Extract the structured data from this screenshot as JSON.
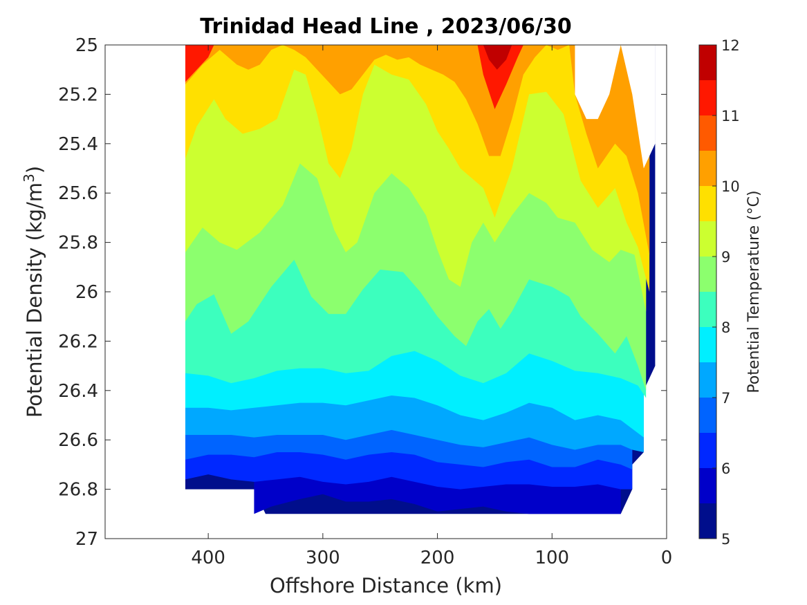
{
  "chart_data": {
    "type": "contour",
    "title": "Trinidad Head Line , 2023/06/30",
    "xlabel": "Offshore Distance (km)",
    "ylabel_main": "Potential Density (kg/m",
    "ylabel_sup": "3",
    "ylabel_end": ")",
    "x_reversed": true,
    "y_reversed": true,
    "xlim": [
      490,
      0
    ],
    "ylim": [
      25,
      27
    ],
    "xticks": [
      {
        "value": 400,
        "label": "400"
      },
      {
        "value": 300,
        "label": "300"
      },
      {
        "value": 200,
        "label": "200"
      },
      {
        "value": 100,
        "label": "100"
      },
      {
        "value": 0,
        "label": "0"
      }
    ],
    "yticks": [
      {
        "value": 25,
        "label": "25"
      },
      {
        "value": 25.2,
        "label": "25.2"
      },
      {
        "value": 25.4,
        "label": "25.4"
      },
      {
        "value": 25.6,
        "label": "25.6"
      },
      {
        "value": 25.8,
        "label": "25.8"
      },
      {
        "value": 26,
        "label": "26"
      },
      {
        "value": 26.2,
        "label": "26.2"
      },
      {
        "value": 26.4,
        "label": "26.4"
      },
      {
        "value": 26.6,
        "label": "26.6"
      },
      {
        "value": 26.8,
        "label": "26.8"
      },
      {
        "value": 27,
        "label": "27"
      }
    ],
    "colorbar": {
      "label": "Potential Temperature (°C)",
      "range": [
        5,
        12
      ],
      "ticks": [
        {
          "value": 5,
          "label": "5"
        },
        {
          "value": 6,
          "label": "6"
        },
        {
          "value": 7,
          "label": "7"
        },
        {
          "value": 8,
          "label": "8"
        },
        {
          "value": 9,
          "label": "9"
        },
        {
          "value": 10,
          "label": "10"
        },
        {
          "value": 11,
          "label": "11"
        },
        {
          "value": 12,
          "label": "12"
        }
      ],
      "levels": [
        5,
        5.5,
        6,
        6.5,
        7,
        7.5,
        8,
        8.5,
        9,
        9.5,
        10,
        10.5,
        11,
        11.5,
        12
      ],
      "colors": [
        "#000e8c",
        "#0000c9",
        "#0028ff",
        "#0064ff",
        "#00a8ff",
        "#00efff",
        "#3cffbe",
        "#8cff6e",
        "#ccff30",
        "#ffe000",
        "#ffa000",
        "#ff5a00",
        "#ff1800",
        "#c00000"
      ]
    },
    "data_extent": {
      "x_offshore_max": 420,
      "x_inshore_min": 10,
      "sigma_min": 25,
      "sigma_max": 26.9
    },
    "isotherms": [
      {
        "level": 5.5,
        "x": [
          360,
          345,
          320,
          300,
          280,
          260,
          240,
          220,
          200,
          180,
          160,
          140,
          120,
          100,
          80,
          60,
          40
        ],
        "sigma": [
          26.9,
          26.87,
          26.84,
          26.82,
          26.85,
          26.85,
          26.84,
          26.86,
          26.89,
          26.88,
          26.87,
          26.89,
          26.9,
          26.9,
          26.9,
          26.9,
          26.9
        ]
      },
      {
        "level": 6,
        "x": [
          420,
          400,
          380,
          360,
          340,
          320,
          300,
          280,
          260,
          240,
          220,
          200,
          180,
          160,
          140,
          120,
          100,
          80,
          60,
          40,
          30
        ],
        "sigma": [
          26.76,
          26.74,
          26.76,
          26.77,
          26.76,
          26.75,
          26.77,
          26.78,
          26.77,
          26.75,
          26.77,
          26.79,
          26.8,
          26.79,
          26.78,
          26.78,
          26.79,
          26.79,
          26.78,
          26.8,
          26.8
        ]
      },
      {
        "level": 6.5,
        "x": [
          420,
          400,
          380,
          360,
          340,
          320,
          300,
          280,
          260,
          240,
          220,
          200,
          180,
          160,
          140,
          120,
          100,
          80,
          60,
          40,
          30
        ],
        "sigma": [
          26.68,
          26.66,
          26.66,
          26.67,
          26.65,
          26.65,
          26.66,
          26.68,
          26.66,
          26.65,
          26.66,
          26.69,
          26.7,
          26.71,
          26.69,
          26.68,
          26.71,
          26.71,
          26.68,
          26.7,
          26.72
        ]
      },
      {
        "level": 7,
        "x": [
          420,
          400,
          380,
          360,
          340,
          320,
          300,
          280,
          260,
          240,
          220,
          200,
          180,
          160,
          140,
          120,
          100,
          80,
          60,
          40,
          30,
          20
        ],
        "sigma": [
          26.58,
          26.58,
          26.58,
          26.59,
          26.58,
          26.58,
          26.58,
          26.6,
          26.58,
          26.56,
          26.58,
          26.6,
          26.62,
          26.63,
          26.61,
          26.59,
          26.62,
          26.64,
          26.62,
          26.62,
          26.64,
          26.65
        ]
      },
      {
        "level": 7.5,
        "x": [
          420,
          400,
          380,
          360,
          340,
          320,
          300,
          280,
          260,
          240,
          220,
          200,
          180,
          160,
          140,
          120,
          100,
          80,
          60,
          40,
          20
        ],
        "sigma": [
          26.47,
          26.47,
          26.48,
          26.47,
          26.46,
          26.45,
          26.45,
          26.46,
          26.44,
          26.42,
          26.43,
          26.46,
          26.5,
          26.52,
          26.49,
          26.45,
          26.47,
          26.52,
          26.5,
          26.52,
          26.59
        ]
      },
      {
        "level": 8,
        "x": [
          420,
          400,
          380,
          360,
          340,
          320,
          300,
          280,
          260,
          240,
          220,
          200,
          180,
          160,
          140,
          120,
          100,
          80,
          60,
          40,
          25,
          18
        ],
        "sigma": [
          26.33,
          26.34,
          26.37,
          26.35,
          26.32,
          26.31,
          26.31,
          26.33,
          26.32,
          26.26,
          26.24,
          26.28,
          26.34,
          26.37,
          26.33,
          26.25,
          26.28,
          26.32,
          26.33,
          26.35,
          26.38,
          26.43
        ]
      },
      {
        "level": 8.5,
        "x": [
          420,
          410,
          395,
          380,
          365,
          345,
          325,
          310,
          295,
          280,
          265,
          250,
          230,
          215,
          200,
          185,
          175,
          165,
          155,
          145,
          135,
          120,
          100,
          85,
          75,
          60,
          45,
          35,
          25,
          18
        ],
        "sigma": [
          26.12,
          26.05,
          26.01,
          26.17,
          26.12,
          25.98,
          25.87,
          26.02,
          26.09,
          26.09,
          25.99,
          25.91,
          25.92,
          26.0,
          26.1,
          26.18,
          26.22,
          26.12,
          26.07,
          26.15,
          26.08,
          25.95,
          25.98,
          26.02,
          26.1,
          26.17,
          26.25,
          26.18,
          26.3,
          26.4
        ]
      },
      {
        "level": 9,
        "x": [
          420,
          405,
          390,
          375,
          355,
          335,
          320,
          305,
          290,
          280,
          270,
          255,
          240,
          225,
          210,
          200,
          190,
          180,
          170,
          160,
          150,
          135,
          120,
          105,
          95,
          80,
          65,
          50,
          40,
          28,
          18
        ],
        "sigma": [
          25.84,
          25.74,
          25.8,
          25.83,
          25.76,
          25.65,
          25.48,
          25.54,
          25.75,
          25.84,
          25.8,
          25.6,
          25.52,
          25.58,
          25.69,
          25.83,
          25.95,
          25.98,
          25.8,
          25.72,
          25.8,
          25.69,
          25.6,
          25.64,
          25.7,
          25.72,
          25.83,
          25.88,
          25.83,
          25.85,
          26.08
        ]
      },
      {
        "level": 9.5,
        "x": [
          420,
          410,
          395,
          385,
          370,
          355,
          340,
          325,
          315,
          305,
          295,
          285,
          275,
          265,
          255,
          240,
          225,
          210,
          200,
          190,
          180,
          170,
          160,
          150,
          135,
          120,
          105,
          90,
          75,
          60,
          45,
          35,
          25,
          15
        ],
        "sigma": [
          25.46,
          25.33,
          25.22,
          25.3,
          25.36,
          25.34,
          25.3,
          25.1,
          25.12,
          25.28,
          25.48,
          25.54,
          25.42,
          25.2,
          25.08,
          25.12,
          25.14,
          25.24,
          25.35,
          25.42,
          25.5,
          25.54,
          25.58,
          25.7,
          25.5,
          25.2,
          25.19,
          25.28,
          25.55,
          25.66,
          25.58,
          25.72,
          25.82,
          26.0
        ]
      },
      {
        "level": 10,
        "x": [
          420,
          405,
          390,
          375,
          365,
          355,
          345,
          335,
          325,
          315,
          305,
          295,
          285,
          275,
          265,
          255,
          245,
          235,
          225,
          215,
          205,
          195,
          185,
          175,
          165,
          155,
          145,
          135,
          125,
          115,
          105,
          95,
          85,
          80,
          70,
          60,
          45,
          35,
          25,
          15
        ],
        "sigma": [
          25.16,
          25.08,
          25.02,
          25.08,
          25.1,
          25.08,
          25.02,
          25.0,
          25.02,
          25.05,
          25.1,
          25.15,
          25.2,
          25.18,
          25.12,
          25.06,
          25.04,
          25.06,
          25.05,
          25.08,
          25.1,
          25.12,
          25.15,
          25.22,
          25.32,
          25.45,
          25.45,
          25.3,
          25.12,
          25.05,
          25.0,
          25.02,
          25.0,
          25.2,
          25.36,
          25.5,
          25.4,
          25.45,
          25.6,
          25.85
        ]
      }
    ]
  }
}
